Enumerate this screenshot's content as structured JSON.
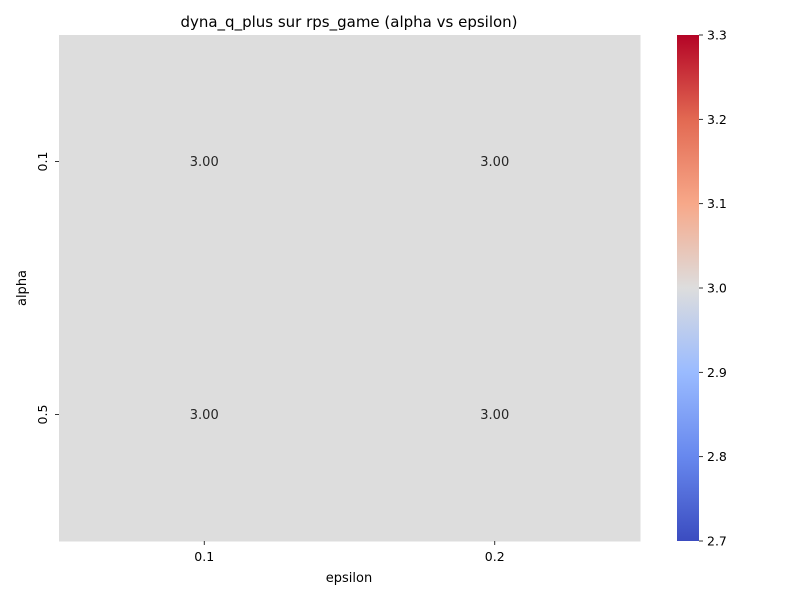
{
  "chart_data": {
    "type": "heatmap",
    "title": "dyna_q_plus sur rps_game (alpha vs epsilon)",
    "xlabel": "epsilon",
    "ylabel": "alpha",
    "x_categories": [
      "0.1",
      "0.2"
    ],
    "y_categories": [
      "0.1",
      "0.5"
    ],
    "values": [
      [
        3.0,
        3.0
      ],
      [
        3.0,
        3.0
      ]
    ],
    "value_labels": [
      [
        "3.00",
        "3.00"
      ],
      [
        "3.00",
        "3.00"
      ]
    ],
    "colorbar": {
      "colormap": "coolwarm",
      "min": 2.7,
      "max": 3.3,
      "ticks": [
        "2.7",
        "2.8",
        "2.9",
        "3.0",
        "3.1",
        "3.2",
        "3.3"
      ],
      "colors": [
        "#3b4cc0",
        "#6788ee",
        "#9abbff",
        "#dddddd",
        "#f7a889",
        "#e26952",
        "#b40426"
      ]
    }
  }
}
